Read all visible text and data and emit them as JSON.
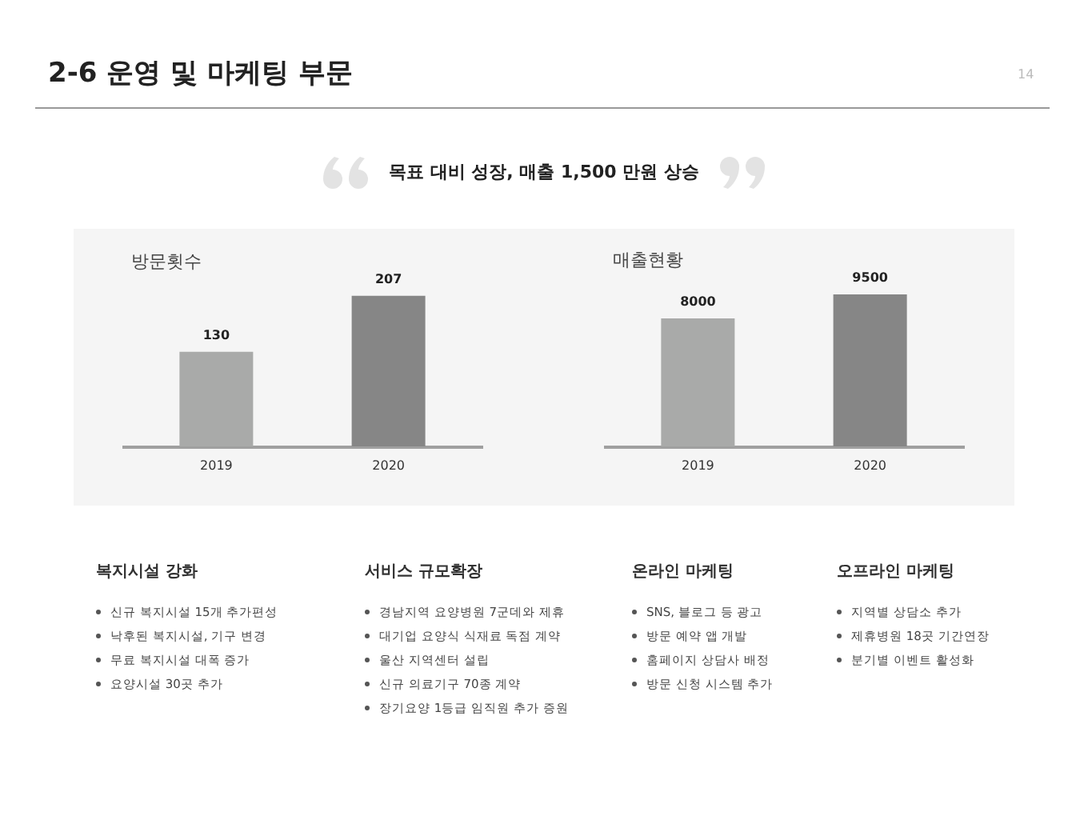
{
  "chart_data": [
    {
      "type": "other",
      "title": "2-6 운영 및 마케팅 부문",
      "subtitle": "목표 대비 성장, 매출 1,500 만원 상승",
      "annotations": [
        "14"
      ]
    },
    {
      "type": "bar",
      "title": "방문횟수",
      "categories": [
        "2019",
        "2020"
      ],
      "values": [
        130,
        207
      ],
      "colors": [
        "#a9aaa9",
        "#868686"
      ],
      "data_labels": true
    },
    {
      "type": "bar",
      "title": "매출현황",
      "categories": [
        "2019",
        "2020"
      ],
      "values": [
        8000,
        9500
      ],
      "colors": [
        "#a9aaa9",
        "#868686"
      ],
      "data_labels": true
    },
    {
      "type": "other",
      "title": "복지시설 강화",
      "annotations": [
        "신규 복지시설 15개 추가편성",
        "낙후된 복지시설, 기구 변경",
        "무료 복지시설 대폭 증가",
        "요양시설 30곳 추가"
      ]
    },
    {
      "type": "other",
      "title": "서비스 규모확장",
      "annotations": [
        "경남지역 요양병원 7군데와 제휴",
        "대기업 요양식 식재료 독점 계약",
        "울산 지역센터 설립",
        "신규 의료기구 70종 계약",
        "장기요양 1등급 임직원 추가 증원"
      ]
    },
    {
      "type": "other",
      "title": "온라인 마케팅",
      "annotations": [
        "SNS, 블로그 등 광고",
        "방문 예약 앱 개발",
        "홈페이지 상담사 배정",
        "방문 신청 시스템 추가"
      ]
    },
    {
      "type": "other",
      "title": "오프라인 마케팅",
      "annotations": [
        "지역별 상담소 추가",
        "제휴병원 18곳 기간연장",
        "분기별 이벤트 활성화"
      ]
    }
  ]
}
